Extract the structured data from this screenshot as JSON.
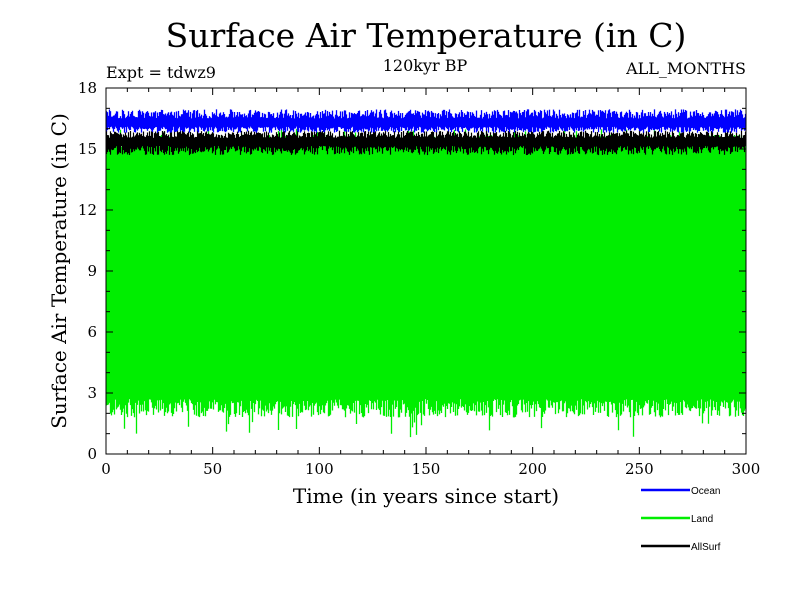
{
  "chart_data": {
    "type": "line",
    "title": "Surface Air Temperature (in C)",
    "subtitle": "120kyr BP",
    "experiment_label": "Expt = tdwz9",
    "months_label": "ALL_MONTHS",
    "xlabel": "Time (in years since start)",
    "ylabel": "Surface Air Temperature (in C)",
    "xlim": [
      0,
      300
    ],
    "ylim": [
      0,
      18
    ],
    "xticks": [
      0,
      50,
      100,
      150,
      200,
      250,
      300
    ],
    "yticks": [
      0,
      3,
      6,
      9,
      12,
      15,
      18
    ],
    "grid": false,
    "legend_position": "bottom-right",
    "series": [
      {
        "name": "Ocean",
        "color": "#0000ff",
        "note_values": "monthly cycle, range approx",
        "min": 15.8,
        "max": 17.1,
        "mean": 16.3
      },
      {
        "name": "Land",
        "color": "#00ee00",
        "min": 0.8,
        "max": 16.0,
        "typical_low": 2.1,
        "typical_high": 15.3
      },
      {
        "name": "AllSurf",
        "color": "#000000",
        "min": 14.9,
        "max": 15.9,
        "mean": 15.4
      }
    ]
  }
}
